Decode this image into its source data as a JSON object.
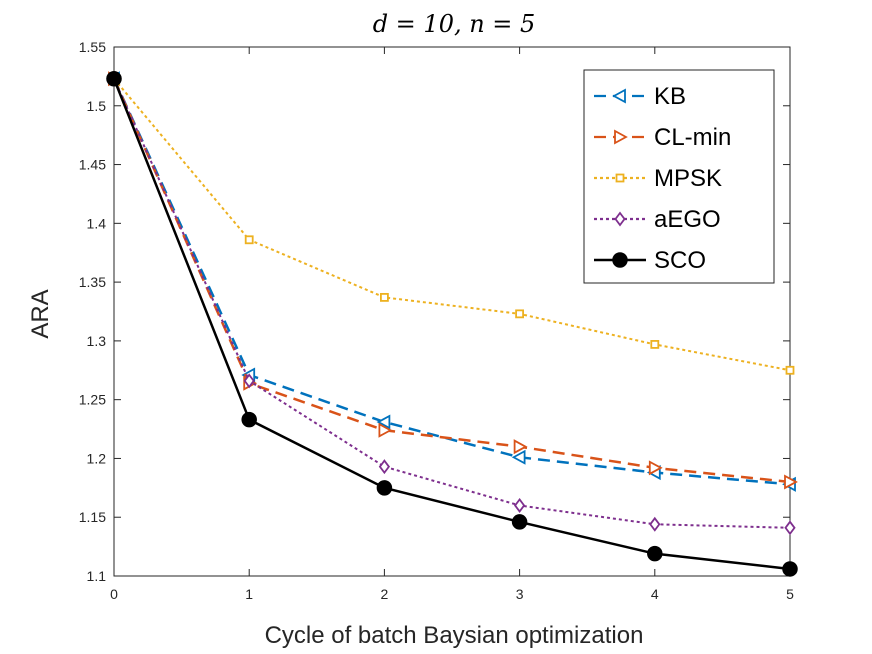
{
  "chart_data": {
    "type": "line",
    "title": "d = 10, n = 5",
    "xlabel": "Cycle of batch Baysian optimization",
    "ylabel": "ARA",
    "x": [
      0,
      1,
      2,
      3,
      4,
      5
    ],
    "xlim": [
      0,
      5
    ],
    "ylim": [
      1.1,
      1.55
    ],
    "xticks": [
      "0",
      "1",
      "2",
      "3",
      "4",
      "5"
    ],
    "yticks": [
      "1.1",
      "1.15",
      "1.2",
      "1.25",
      "1.3",
      "1.35",
      "1.4",
      "1.45",
      "1.5",
      "1.55"
    ],
    "grid": false,
    "legend_position": "top-right",
    "series": [
      {
        "name": "KB",
        "color": "#0072BD",
        "dash": "dashed",
        "marker": "triangle-left",
        "values": [
          1.523,
          1.271,
          1.231,
          1.201,
          1.188,
          1.178
        ]
      },
      {
        "name": "CL-min",
        "color": "#D95319",
        "dash": "dashed",
        "marker": "triangle-right",
        "values": [
          1.523,
          1.264,
          1.224,
          1.21,
          1.192,
          1.18
        ]
      },
      {
        "name": "MPSK",
        "color": "#EDB120",
        "dash": "dotted",
        "marker": "square",
        "values": [
          1.523,
          1.386,
          1.337,
          1.323,
          1.297,
          1.275
        ]
      },
      {
        "name": "aEGO",
        "color": "#7E2F8E",
        "dash": "dotted",
        "marker": "diamond",
        "values": [
          1.523,
          1.266,
          1.193,
          1.16,
          1.144,
          1.141
        ]
      },
      {
        "name": "SCO",
        "color": "#000000",
        "dash": "solid",
        "marker": "circle",
        "values": [
          1.523,
          1.233,
          1.175,
          1.146,
          1.119,
          1.106
        ]
      }
    ]
  }
}
